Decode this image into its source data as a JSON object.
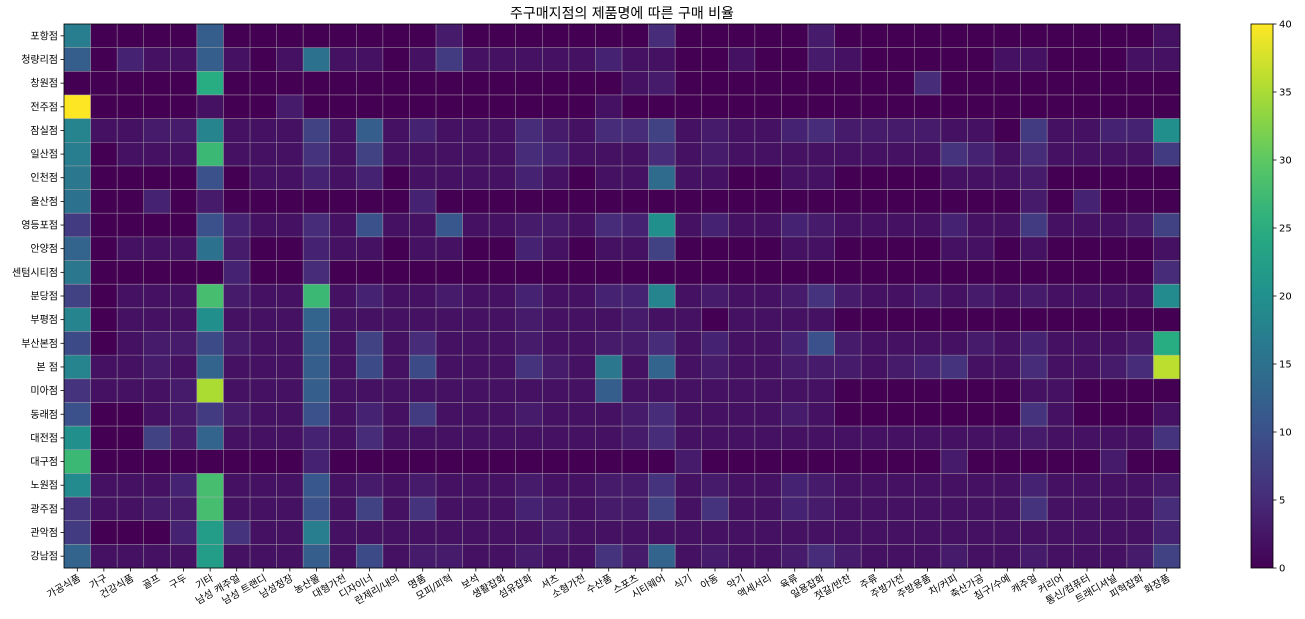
{
  "chart_data": {
    "type": "heatmap",
    "title": "주구매지점의 제품명에 따른 구매 비율",
    "xlabel": "",
    "ylabel": "",
    "colormap": "viridis",
    "vmin": 0,
    "vmax": 40,
    "colorbar_ticks": [
      0,
      5,
      10,
      15,
      20,
      25,
      30,
      35,
      40
    ],
    "grid": true,
    "x_categories": [
      "가공식품",
      "가구",
      "건강식품",
      "골프",
      "구두",
      "기타",
      "남성 캐주얼",
      "남성 트랜디",
      "남성정장",
      "농산물",
      "대형가전",
      "디자이너",
      "란제리/내의",
      "명품",
      "모피/피혁",
      "보석",
      "생활잡화",
      "섬유잡화",
      "셔츠",
      "소형가전",
      "수산품",
      "스포츠",
      "시티웨어",
      "식기",
      "아동",
      "악기",
      "액세서리",
      "육류",
      "일용잡화",
      "젓갈/반찬",
      "주류",
      "주방가전",
      "주방용품",
      "차/커피",
      "축산가공",
      "침구/수예",
      "캐주얼",
      "커리어",
      "통신/컴퓨터",
      "트래디셔널",
      "피혁잡화",
      "화장품"
    ],
    "y_categories": [
      "포항점",
      "청량리점",
      "창원점",
      "전주점",
      "잠실점",
      "일산점",
      "인천점",
      "울산점",
      "영등포점",
      "안양점",
      "센텀시티점",
      "분당점",
      "부평점",
      "부산본점",
      "본  점",
      "미아점",
      "동래점",
      "대전점",
      "대구점",
      "노원점",
      "광주점",
      "관악점",
      "강남점"
    ],
    "values": [
      [
        17,
        0,
        0,
        0,
        0,
        12,
        0,
        0,
        0,
        0,
        0,
        0,
        0,
        0,
        3,
        0,
        0,
        0,
        0,
        0,
        0,
        0,
        5,
        0,
        0,
        0,
        0,
        0,
        3,
        0,
        0,
        0,
        0,
        0,
        0,
        0,
        0,
        0,
        0,
        0,
        0,
        2
      ],
      [
        12,
        0,
        4,
        2,
        2,
        12,
        2,
        0,
        2,
        15,
        2,
        2,
        0,
        2,
        7,
        2,
        2,
        2,
        2,
        2,
        4,
        2,
        2,
        0,
        0,
        2,
        0,
        0,
        3,
        2,
        0,
        0,
        0,
        0,
        0,
        2,
        2,
        0,
        0,
        0,
        2,
        2
      ],
      [
        0,
        0,
        0,
        0,
        0,
        25,
        0,
        0,
        0,
        0,
        0,
        0,
        0,
        0,
        0,
        0,
        0,
        0,
        0,
        0,
        0,
        2,
        3,
        0,
        0,
        0,
        0,
        0,
        0,
        0,
        0,
        0,
        5,
        0,
        0,
        0,
        0,
        0,
        0,
        0,
        0,
        0
      ],
      [
        40,
        0,
        0,
        0,
        0,
        2,
        0,
        0,
        3,
        0,
        0,
        0,
        0,
        0,
        0,
        0,
        0,
        0,
        0,
        0,
        2,
        0,
        0,
        0,
        0,
        0,
        0,
        0,
        0,
        0,
        0,
        0,
        0,
        0,
        0,
        0,
        0,
        0,
        0,
        0,
        0,
        0
      ],
      [
        18,
        2,
        2,
        3,
        3,
        18,
        2,
        2,
        2,
        8,
        2,
        12,
        2,
        4,
        2,
        2,
        2,
        5,
        3,
        2,
        5,
        5,
        8,
        2,
        3,
        2,
        2,
        4,
        5,
        3,
        3,
        3,
        3,
        2,
        2,
        0,
        7,
        2,
        2,
        4,
        4,
        20
      ],
      [
        17,
        0,
        2,
        2,
        2,
        27,
        2,
        2,
        2,
        6,
        2,
        8,
        2,
        2,
        2,
        2,
        2,
        5,
        4,
        2,
        2,
        2,
        5,
        2,
        3,
        2,
        2,
        2,
        2,
        2,
        2,
        2,
        2,
        6,
        4,
        2,
        5,
        2,
        2,
        2,
        2,
        7
      ],
      [
        16,
        0,
        0,
        0,
        0,
        10,
        0,
        2,
        2,
        4,
        2,
        4,
        0,
        2,
        2,
        2,
        2,
        4,
        2,
        0,
        2,
        2,
        14,
        2,
        2,
        0,
        0,
        2,
        2,
        0,
        0,
        0,
        0,
        2,
        2,
        2,
        3,
        0,
        0,
        0,
        0,
        0
      ],
      [
        15,
        0,
        0,
        4,
        0,
        3,
        0,
        0,
        0,
        0,
        0,
        0,
        0,
        4,
        0,
        0,
        0,
        0,
        0,
        0,
        0,
        0,
        0,
        0,
        0,
        0,
        0,
        0,
        0,
        0,
        0,
        0,
        0,
        0,
        0,
        0,
        3,
        0,
        4,
        0,
        0,
        0
      ],
      [
        7,
        0,
        0,
        0,
        0,
        10,
        4,
        2,
        2,
        5,
        2,
        10,
        2,
        2,
        11,
        2,
        2,
        3,
        3,
        2,
        5,
        4,
        20,
        2,
        4,
        2,
        2,
        4,
        3,
        2,
        2,
        2,
        2,
        4,
        2,
        2,
        7,
        2,
        2,
        2,
        3,
        8
      ],
      [
        13,
        0,
        2,
        2,
        2,
        15,
        3,
        0,
        0,
        4,
        2,
        2,
        0,
        2,
        2,
        0,
        0,
        4,
        2,
        0,
        2,
        2,
        8,
        0,
        0,
        0,
        0,
        2,
        2,
        0,
        0,
        0,
        0,
        2,
        2,
        0,
        2,
        0,
        0,
        0,
        0,
        2
      ],
      [
        16,
        0,
        0,
        0,
        0,
        0,
        4,
        0,
        0,
        5,
        0,
        0,
        0,
        0,
        0,
        0,
        0,
        0,
        0,
        0,
        0,
        0,
        0,
        0,
        0,
        0,
        0,
        0,
        0,
        0,
        0,
        0,
        0,
        0,
        0,
        0,
        0,
        0,
        0,
        0,
        0,
        5
      ],
      [
        8,
        0,
        2,
        2,
        2,
        28,
        3,
        2,
        2,
        27,
        2,
        4,
        2,
        2,
        3,
        2,
        2,
        4,
        2,
        2,
        4,
        4,
        18,
        2,
        3,
        2,
        2,
        3,
        6,
        3,
        2,
        2,
        3,
        2,
        3,
        2,
        3,
        2,
        2,
        2,
        2,
        19
      ],
      [
        18,
        0,
        2,
        2,
        2,
        20,
        2,
        2,
        2,
        13,
        2,
        2,
        2,
        2,
        2,
        2,
        2,
        3,
        2,
        2,
        2,
        3,
        2,
        2,
        0,
        2,
        2,
        2,
        2,
        0,
        0,
        0,
        0,
        0,
        0,
        0,
        0,
        0,
        0,
        0,
        0,
        0
      ],
      [
        9,
        0,
        2,
        3,
        3,
        9,
        3,
        2,
        2,
        12,
        2,
        8,
        2,
        5,
        2,
        2,
        2,
        3,
        2,
        2,
        3,
        3,
        5,
        2,
        4,
        2,
        2,
        4,
        10,
        3,
        2,
        2,
        2,
        2,
        3,
        2,
        4,
        2,
        2,
        2,
        3,
        25
      ],
      [
        18,
        2,
        2,
        3,
        2,
        13,
        2,
        2,
        2,
        12,
        2,
        9,
        2,
        9,
        2,
        2,
        2,
        6,
        3,
        2,
        16,
        2,
        13,
        2,
        3,
        2,
        2,
        3,
        3,
        3,
        2,
        3,
        4,
        6,
        2,
        2,
        5,
        2,
        2,
        3,
        5,
        36
      ],
      [
        6,
        2,
        2,
        2,
        3,
        35,
        2,
        2,
        2,
        12,
        2,
        2,
        2,
        2,
        2,
        2,
        2,
        2,
        2,
        2,
        12,
        2,
        2,
        2,
        2,
        2,
        2,
        2,
        2,
        0,
        0,
        0,
        0,
        0,
        0,
        0,
        2,
        2,
        0,
        0,
        0,
        0
      ],
      [
        10,
        0,
        0,
        2,
        3,
        7,
        3,
        2,
        2,
        10,
        2,
        4,
        2,
        7,
        2,
        2,
        2,
        3,
        2,
        2,
        2,
        3,
        5,
        2,
        2,
        2,
        2,
        3,
        2,
        0,
        0,
        0,
        0,
        0,
        0,
        0,
        6,
        2,
        0,
        0,
        0,
        2
      ],
      [
        20,
        0,
        0,
        8,
        3,
        13,
        2,
        2,
        2,
        4,
        2,
        5,
        2,
        2,
        2,
        2,
        2,
        2,
        2,
        2,
        2,
        3,
        5,
        2,
        2,
        2,
        2,
        2,
        2,
        2,
        2,
        2,
        2,
        2,
        2,
        2,
        3,
        2,
        2,
        2,
        2,
        6
      ],
      [
        27,
        0,
        0,
        0,
        0,
        0,
        0,
        0,
        0,
        4,
        0,
        0,
        0,
        0,
        0,
        0,
        0,
        0,
        0,
        0,
        0,
        0,
        0,
        3,
        0,
        0,
        0,
        0,
        0,
        0,
        0,
        0,
        0,
        3,
        0,
        0,
        0,
        0,
        0,
        3,
        0,
        0
      ],
      [
        19,
        2,
        2,
        2,
        4,
        28,
        2,
        2,
        2,
        11,
        2,
        3,
        2,
        3,
        2,
        2,
        2,
        3,
        2,
        2,
        3,
        3,
        6,
        2,
        3,
        2,
        2,
        4,
        3,
        2,
        2,
        2,
        2,
        2,
        2,
        2,
        4,
        2,
        2,
        2,
        2,
        3
      ],
      [
        6,
        2,
        2,
        3,
        3,
        28,
        2,
        2,
        2,
        10,
        2,
        8,
        2,
        6,
        2,
        2,
        2,
        4,
        3,
        2,
        3,
        3,
        8,
        2,
        6,
        2,
        2,
        4,
        3,
        2,
        2,
        2,
        2,
        2,
        2,
        2,
        6,
        2,
        2,
        2,
        2,
        5
      ],
      [
        7,
        0,
        0,
        0,
        4,
        22,
        6,
        2,
        2,
        17,
        2,
        2,
        2,
        2,
        2,
        2,
        2,
        2,
        3,
        2,
        2,
        2,
        2,
        2,
        2,
        2,
        2,
        2,
        2,
        2,
        2,
        2,
        2,
        2,
        2,
        2,
        2,
        2,
        2,
        2,
        2,
        4
      ],
      [
        13,
        2,
        2,
        2,
        2,
        22,
        2,
        2,
        2,
        12,
        2,
        9,
        2,
        3,
        3,
        2,
        2,
        3,
        2,
        2,
        6,
        3,
        13,
        2,
        3,
        2,
        2,
        3,
        5,
        3,
        2,
        2,
        2,
        3,
        2,
        2,
        3,
        2,
        2,
        2,
        3,
        8
      ]
    ]
  }
}
